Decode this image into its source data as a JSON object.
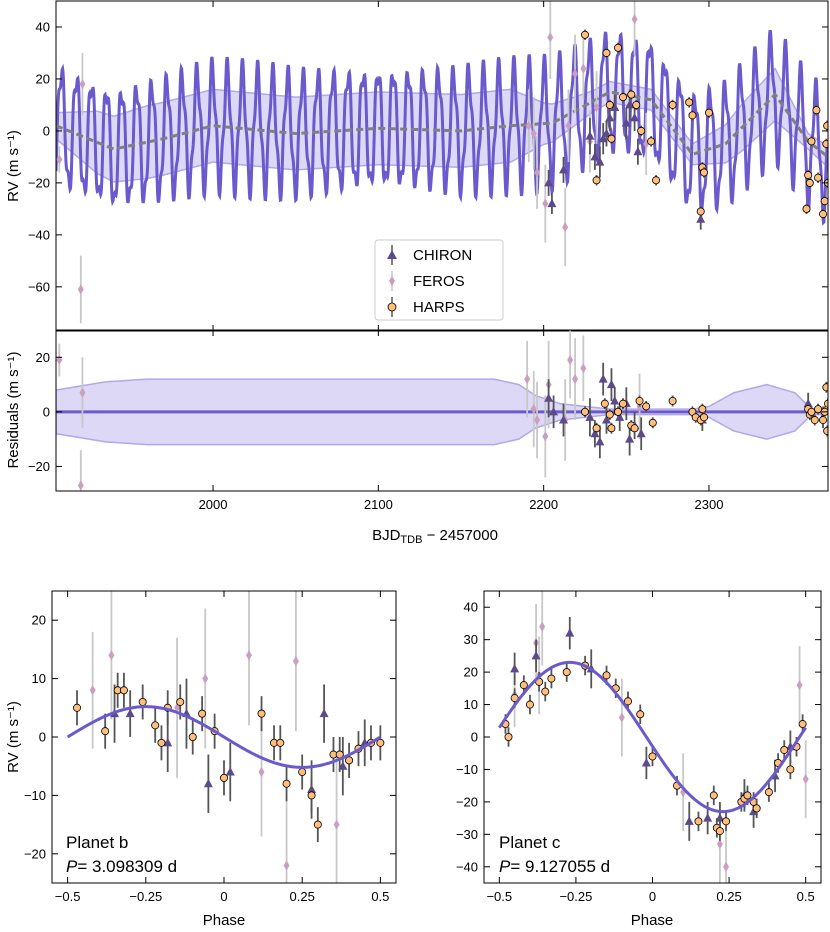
{
  "colors": {
    "model": "#6a5acd",
    "band": "#d6d2f5",
    "band_edge": "#a49ae6",
    "gp_mean": "#808080",
    "chiron": "#5d4a8a",
    "feros": "#c9a0bf",
    "harps": "#ffbe7a",
    "errbar_dark": "#555555",
    "errbar_light": "#c8c8c8"
  },
  "legend": {
    "chiron": "CHIRON",
    "feros": "FEROS",
    "harps": "HARPS"
  },
  "chart_data": [
    {
      "type": "scatter",
      "name": "timeseries",
      "ylabel": "RV (m s⁻¹)",
      "ylim": [
        -77,
        50
      ],
      "xlim": [
        1905,
        2372
      ],
      "yticks": [
        40,
        20,
        0,
        -20,
        -40,
        -60
      ],
      "model": {
        "period_b": 3.098309,
        "amp_b": 5,
        "period_c": 9.127055,
        "amp_c": 22
      },
      "gp_mean": [
        [
          1905,
          2
        ],
        [
          1940,
          -7
        ],
        [
          1970,
          -3
        ],
        [
          2000,
          2
        ],
        [
          2050,
          -1
        ],
        [
          2100,
          1
        ],
        [
          2150,
          0
        ],
        [
          2180,
          2
        ],
        [
          2205,
          3
        ],
        [
          2220,
          8
        ],
        [
          2240,
          15
        ],
        [
          2265,
          12
        ],
        [
          2290,
          -9
        ],
        [
          2310,
          -5
        ],
        [
          2340,
          14
        ],
        [
          2360,
          -4
        ],
        [
          2372,
          -10
        ]
      ],
      "gp_sigma": [
        [
          1905,
          5
        ],
        [
          1930,
          12
        ],
        [
          1960,
          14
        ],
        [
          2000,
          14
        ],
        [
          2100,
          14
        ],
        [
          2180,
          14
        ],
        [
          2200,
          8
        ],
        [
          2230,
          4
        ],
        [
          2260,
          4
        ],
        [
          2290,
          4
        ],
        [
          2320,
          9
        ],
        [
          2340,
          10
        ],
        [
          2360,
          3
        ],
        [
          2372,
          4
        ]
      ],
      "chiron": [
        [
          2203,
          -20,
          5
        ],
        [
          2205,
          -28,
          4
        ],
        [
          2212,
          -15,
          5
        ],
        [
          2228,
          -2,
          7
        ],
        [
          2231,
          -10,
          5
        ],
        [
          2234,
          -12,
          6
        ],
        [
          2236,
          -3,
          6
        ],
        [
          2238,
          -1,
          5
        ],
        [
          2240,
          5,
          5
        ],
        [
          2243,
          9,
          5
        ],
        [
          2250,
          3,
          6
        ],
        [
          2252,
          10,
          6
        ],
        [
          2255,
          5,
          5
        ],
        [
          2257,
          -8,
          5
        ],
        [
          2295,
          -34,
          4
        ]
      ],
      "feros": [
        [
          1907,
          -11,
          5
        ],
        [
          1920,
          -61,
          13
        ],
        [
          1921,
          18,
          12
        ],
        [
          2191,
          2,
          14
        ],
        [
          2194,
          -1,
          14
        ],
        [
          2196,
          -16,
          14
        ],
        [
          2201,
          -28,
          15
        ],
        [
          2204,
          36,
          16
        ],
        [
          2213,
          -37,
          15
        ],
        [
          2215,
          2,
          14
        ],
        [
          2219,
          22,
          15
        ],
        [
          2224,
          24,
          12
        ],
        [
          2228,
          -4,
          12
        ],
        [
          2232,
          9,
          14
        ],
        [
          2255,
          43,
          14
        ],
        [
          2262,
          -5,
          12
        ]
      ],
      "harps": [
        [
          2225,
          37,
          2
        ],
        [
          2232,
          -19,
          2
        ],
        [
          2238,
          30,
          2
        ],
        [
          2240,
          10,
          2
        ],
        [
          2241,
          -3,
          2
        ],
        [
          2245,
          32,
          2
        ],
        [
          2248,
          13,
          2
        ],
        [
          2253,
          14,
          2
        ],
        [
          2256,
          10,
          2
        ],
        [
          2259,
          0,
          2
        ],
        [
          2265,
          -4,
          2
        ],
        [
          2268,
          -19,
          2
        ],
        [
          2278,
          10,
          2
        ],
        [
          2288,
          11,
          2
        ],
        [
          2290,
          6,
          2
        ],
        [
          2295,
          -31,
          2
        ],
        [
          2296,
          -14,
          2
        ],
        [
          2297,
          -16,
          2
        ],
        [
          2300,
          7,
          2
        ],
        [
          2359,
          -30,
          2
        ],
        [
          2360,
          -17,
          2
        ],
        [
          2361,
          -20,
          2
        ],
        [
          2362,
          -4,
          2
        ],
        [
          2365,
          8,
          2
        ],
        [
          2366,
          -18,
          2
        ],
        [
          2369,
          -32,
          2
        ],
        [
          2370,
          -27,
          2
        ],
        [
          2371,
          -5,
          2
        ],
        [
          2371.5,
          2,
          2
        ],
        [
          2372,
          -20,
          2
        ]
      ]
    },
    {
      "type": "scatter",
      "name": "residuals",
      "ylabel": "Residuals (m s⁻¹)",
      "xlabel": "BJD",
      "xlabel_sub": "TDB",
      "xlabel_tail": " − 2457000",
      "ylim": [
        -29,
        30
      ],
      "xlim": [
        1905,
        2372
      ],
      "xticks": [
        2000,
        2100,
        2200,
        2300
      ],
      "yticks": [
        20,
        0,
        -20
      ],
      "band": [
        [
          1905,
          8
        ],
        [
          1915,
          9
        ],
        [
          1935,
          11
        ],
        [
          1960,
          12
        ],
        [
          2100,
          12
        ],
        [
          2170,
          12
        ],
        [
          2185,
          10
        ],
        [
          2195,
          6
        ],
        [
          2210,
          3
        ],
        [
          2240,
          1
        ],
        [
          2270,
          1
        ],
        [
          2290,
          1
        ],
        [
          2300,
          2
        ],
        [
          2315,
          7
        ],
        [
          2335,
          10
        ],
        [
          2352,
          7
        ],
        [
          2362,
          1
        ],
        [
          2372,
          1
        ]
      ],
      "chiron": [
        [
          2203,
          5,
          7
        ],
        [
          2206,
          0,
          6
        ],
        [
          2212,
          -3,
          6
        ],
        [
          2228,
          -2,
          7
        ],
        [
          2231,
          -8,
          5
        ],
        [
          2234,
          -11,
          6
        ],
        [
          2236,
          12,
          6
        ],
        [
          2238,
          -3,
          5
        ],
        [
          2241,
          10,
          6
        ],
        [
          2243,
          4,
          5
        ],
        [
          2246,
          -2,
          5
        ],
        [
          2250,
          3,
          6
        ],
        [
          2252,
          -10,
          6
        ],
        [
          2255,
          -5,
          5
        ],
        [
          2259,
          -8,
          6
        ],
        [
          2296,
          -3,
          4
        ],
        [
          2360,
          3,
          4
        ],
        [
          2369,
          -2,
          4
        ]
      ],
      "feros": [
        [
          1907,
          19,
          6
        ],
        [
          1920,
          -27,
          13
        ],
        [
          1921,
          7,
          13
        ],
        [
          2190,
          12,
          14
        ],
        [
          2194,
          1,
          14
        ],
        [
          2196,
          -3,
          14
        ],
        [
          2201,
          -9,
          15
        ],
        [
          2203,
          10,
          16
        ],
        [
          2213,
          -3,
          15
        ],
        [
          2216,
          19,
          14
        ],
        [
          2219,
          12,
          15
        ],
        [
          2224,
          16,
          12
        ],
        [
          2258,
          2,
          12
        ]
      ],
      "harps": [
        [
          2225,
          0,
          2
        ],
        [
          2232,
          -6,
          2
        ],
        [
          2237,
          3,
          2
        ],
        [
          2240,
          -1,
          2
        ],
        [
          2241,
          -6,
          2
        ],
        [
          2245,
          0,
          2
        ],
        [
          2248,
          3,
          2
        ],
        [
          2253,
          -5,
          2
        ],
        [
          2255,
          -6,
          2
        ],
        [
          2258,
          4,
          2
        ],
        [
          2262,
          2,
          2
        ],
        [
          2266,
          -4,
          2
        ],
        [
          2278,
          4,
          2
        ],
        [
          2290,
          0,
          2
        ],
        [
          2292,
          -2,
          2
        ],
        [
          2295,
          -3,
          2
        ],
        [
          2296,
          1,
          2
        ],
        [
          2297,
          -2,
          2
        ],
        [
          2360,
          1,
          2
        ],
        [
          2361,
          -1,
          2
        ],
        [
          2362,
          0,
          2
        ],
        [
          2364,
          -3,
          2
        ],
        [
          2366,
          1,
          2
        ],
        [
          2369,
          -3,
          2
        ],
        [
          2370,
          0,
          2
        ],
        [
          2371,
          9,
          2
        ],
        [
          2371.5,
          -7,
          2
        ],
        [
          2372,
          3,
          2
        ]
      ]
    },
    {
      "type": "scatter",
      "name": "phase_b",
      "ylabel": "RV (m s⁻¹)",
      "xlabel": "Phase",
      "xlim": [
        -0.55,
        0.55
      ],
      "ylim": [
        -25,
        25
      ],
      "xticks": [
        -0.5,
        -0.25,
        0,
        0.25,
        0.5
      ],
      "yticks": [
        20,
        10,
        0,
        -10,
        -20
      ],
      "planet": "Planet b",
      "period_label": "P",
      "period_value": "= 3.098309 d",
      "amplitude": 5.2,
      "phase_offset": -0.25,
      "chiron": [
        [
          -0.35,
          4,
          5
        ],
        [
          -0.3,
          4,
          4
        ],
        [
          -0.18,
          -1,
          5
        ],
        [
          -0.12,
          4,
          6
        ],
        [
          -0.05,
          -8,
          5
        ],
        [
          0.02,
          -6,
          5
        ],
        [
          0.28,
          -9,
          5
        ],
        [
          0.32,
          4,
          5
        ],
        [
          0.38,
          -5,
          5
        ],
        [
          0.45,
          -1,
          4
        ]
      ],
      "feros": [
        [
          -0.36,
          14,
          11
        ],
        [
          -0.42,
          8,
          10
        ],
        [
          -0.15,
          5,
          12
        ],
        [
          0.08,
          14,
          12
        ],
        [
          -0.06,
          10,
          12
        ],
        [
          0.12,
          -6,
          11
        ],
        [
          0.23,
          13,
          12
        ],
        [
          0.36,
          -15,
          12
        ],
        [
          0.2,
          -22,
          12
        ]
      ],
      "harps": [
        [
          -0.47,
          5,
          3
        ],
        [
          -0.38,
          1,
          3
        ],
        [
          -0.34,
          8,
          3
        ],
        [
          -0.32,
          8,
          3
        ],
        [
          -0.26,
          6,
          3
        ],
        [
          -0.22,
          2,
          3
        ],
        [
          -0.2,
          -1,
          3
        ],
        [
          -0.18,
          5,
          3
        ],
        [
          -0.14,
          6,
          3
        ],
        [
          -0.1,
          0,
          3
        ],
        [
          -0.07,
          4,
          3
        ],
        [
          -0.03,
          1,
          3
        ],
        [
          0.0,
          -7,
          3
        ],
        [
          0.12,
          4,
          3
        ],
        [
          0.16,
          -1,
          3
        ],
        [
          0.18,
          -1,
          3
        ],
        [
          0.2,
          -8,
          3
        ],
        [
          0.25,
          -6,
          3
        ],
        [
          0.28,
          -10,
          3
        ],
        [
          0.3,
          -15,
          3
        ],
        [
          0.35,
          -3,
          3
        ],
        [
          0.37,
          -3,
          3
        ],
        [
          0.4,
          -4,
          3
        ],
        [
          0.43,
          -2,
          3
        ],
        [
          0.47,
          -1,
          3
        ],
        [
          0.5,
          -1,
          3
        ]
      ]
    },
    {
      "type": "scatter",
      "name": "phase_c",
      "ylabel": "",
      "xlabel": "Phase",
      "xlim": [
        -0.55,
        0.55
      ],
      "ylim": [
        -45,
        45
      ],
      "xticks": [
        -0.5,
        -0.25,
        0,
        0.25,
        0.5
      ],
      "yticks": [
        40,
        30,
        20,
        10,
        0,
        -10,
        -20,
        -30,
        -40
      ],
      "planet": "Planet c",
      "period_label": "P",
      "period_value": "= 9.127055 d",
      "amplitude": 23,
      "phase_offset": -0.27,
      "chiron": [
        [
          -0.45,
          21,
          5
        ],
        [
          -0.38,
          25,
          5
        ],
        [
          -0.27,
          32,
          5
        ],
        [
          -0.2,
          21,
          6
        ],
        [
          -0.02,
          -8,
          5
        ],
        [
          0.12,
          -26,
          6
        ],
        [
          0.18,
          -25,
          5
        ],
        [
          0.22,
          -25,
          5
        ],
        [
          0.3,
          -18,
          5
        ],
        [
          0.33,
          -23,
          5
        ],
        [
          0.4,
          -12,
          5
        ],
        [
          0.45,
          -3,
          5
        ]
      ],
      "feros": [
        [
          -0.45,
          13,
          10
        ],
        [
          -0.37,
          19,
          12
        ],
        [
          -0.38,
          29,
          12
        ],
        [
          -0.36,
          34,
          12
        ],
        [
          -0.1,
          6,
          12
        ],
        [
          0.1,
          -17,
          12
        ],
        [
          0.22,
          -33,
          12
        ],
        [
          0.24,
          -40,
          12
        ],
        [
          0.48,
          16,
          12
        ],
        [
          0.5,
          -13,
          12
        ]
      ],
      "harps": [
        [
          -0.48,
          4,
          3
        ],
        [
          -0.47,
          0,
          3
        ],
        [
          -0.45,
          12,
          3
        ],
        [
          -0.42,
          16,
          3
        ],
        [
          -0.4,
          10,
          3
        ],
        [
          -0.37,
          17,
          3
        ],
        [
          -0.35,
          14,
          3
        ],
        [
          -0.33,
          18,
          3
        ],
        [
          -0.28,
          20,
          3
        ],
        [
          -0.22,
          22,
          3
        ],
        [
          -0.15,
          19,
          3
        ],
        [
          -0.12,
          15,
          3
        ],
        [
          -0.08,
          11,
          3
        ],
        [
          -0.04,
          7,
          3
        ],
        [
          0.0,
          -6,
          3
        ],
        [
          0.08,
          -15,
          3
        ],
        [
          0.15,
          -26,
          3
        ],
        [
          0.2,
          -18,
          3
        ],
        [
          0.21,
          -28,
          3
        ],
        [
          0.22,
          -29,
          3
        ],
        [
          0.24,
          -26,
          3
        ],
        [
          0.29,
          -20,
          3
        ],
        [
          0.3,
          -19,
          3
        ],
        [
          0.31,
          -18,
          3
        ],
        [
          0.33,
          -20,
          3
        ],
        [
          0.34,
          -22,
          3
        ],
        [
          0.38,
          -17,
          3
        ],
        [
          0.41,
          -8,
          3
        ],
        [
          0.43,
          -4,
          3
        ],
        [
          0.45,
          -10,
          3
        ],
        [
          0.47,
          -3,
          3
        ],
        [
          0.49,
          4,
          3
        ]
      ]
    }
  ]
}
